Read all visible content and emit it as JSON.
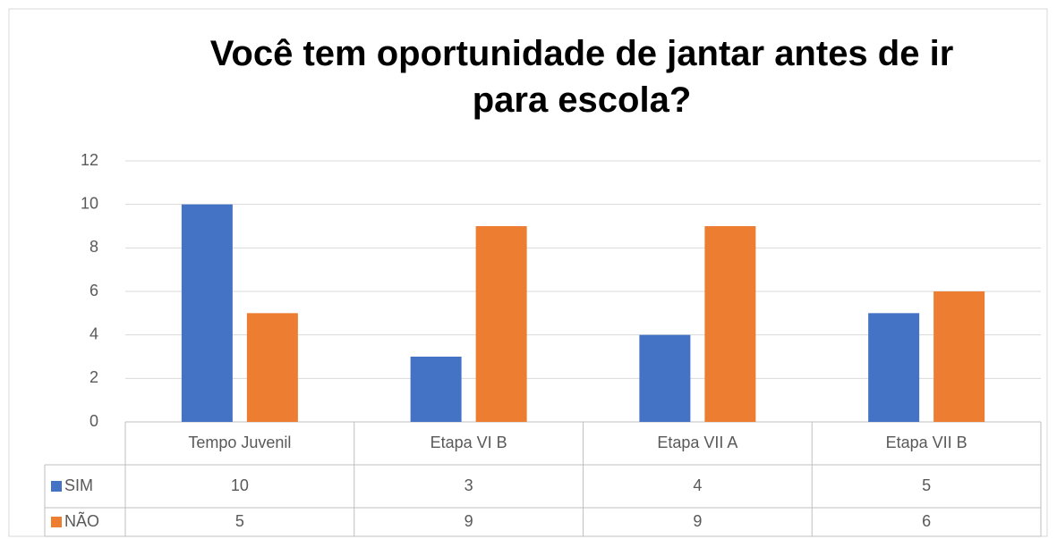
{
  "chart_data": {
    "type": "bar",
    "title": "Você tem oportunidade de jantar antes de ir para escola?",
    "categories": [
      "Tempo Juvenil",
      "Etapa VI B",
      "Etapa VII A",
      "Etapa VII B"
    ],
    "series": [
      {
        "name": "SIM",
        "color": "#4472c4",
        "values": [
          10,
          3,
          4,
          5
        ]
      },
      {
        "name": "NÃO",
        "color": "#ed7d31",
        "values": [
          5,
          9,
          9,
          6
        ]
      }
    ],
    "ylim": [
      0,
      12
    ],
    "yticks": [
      0,
      2,
      4,
      6,
      8,
      10,
      12
    ],
    "grid": true,
    "legend": "table"
  }
}
